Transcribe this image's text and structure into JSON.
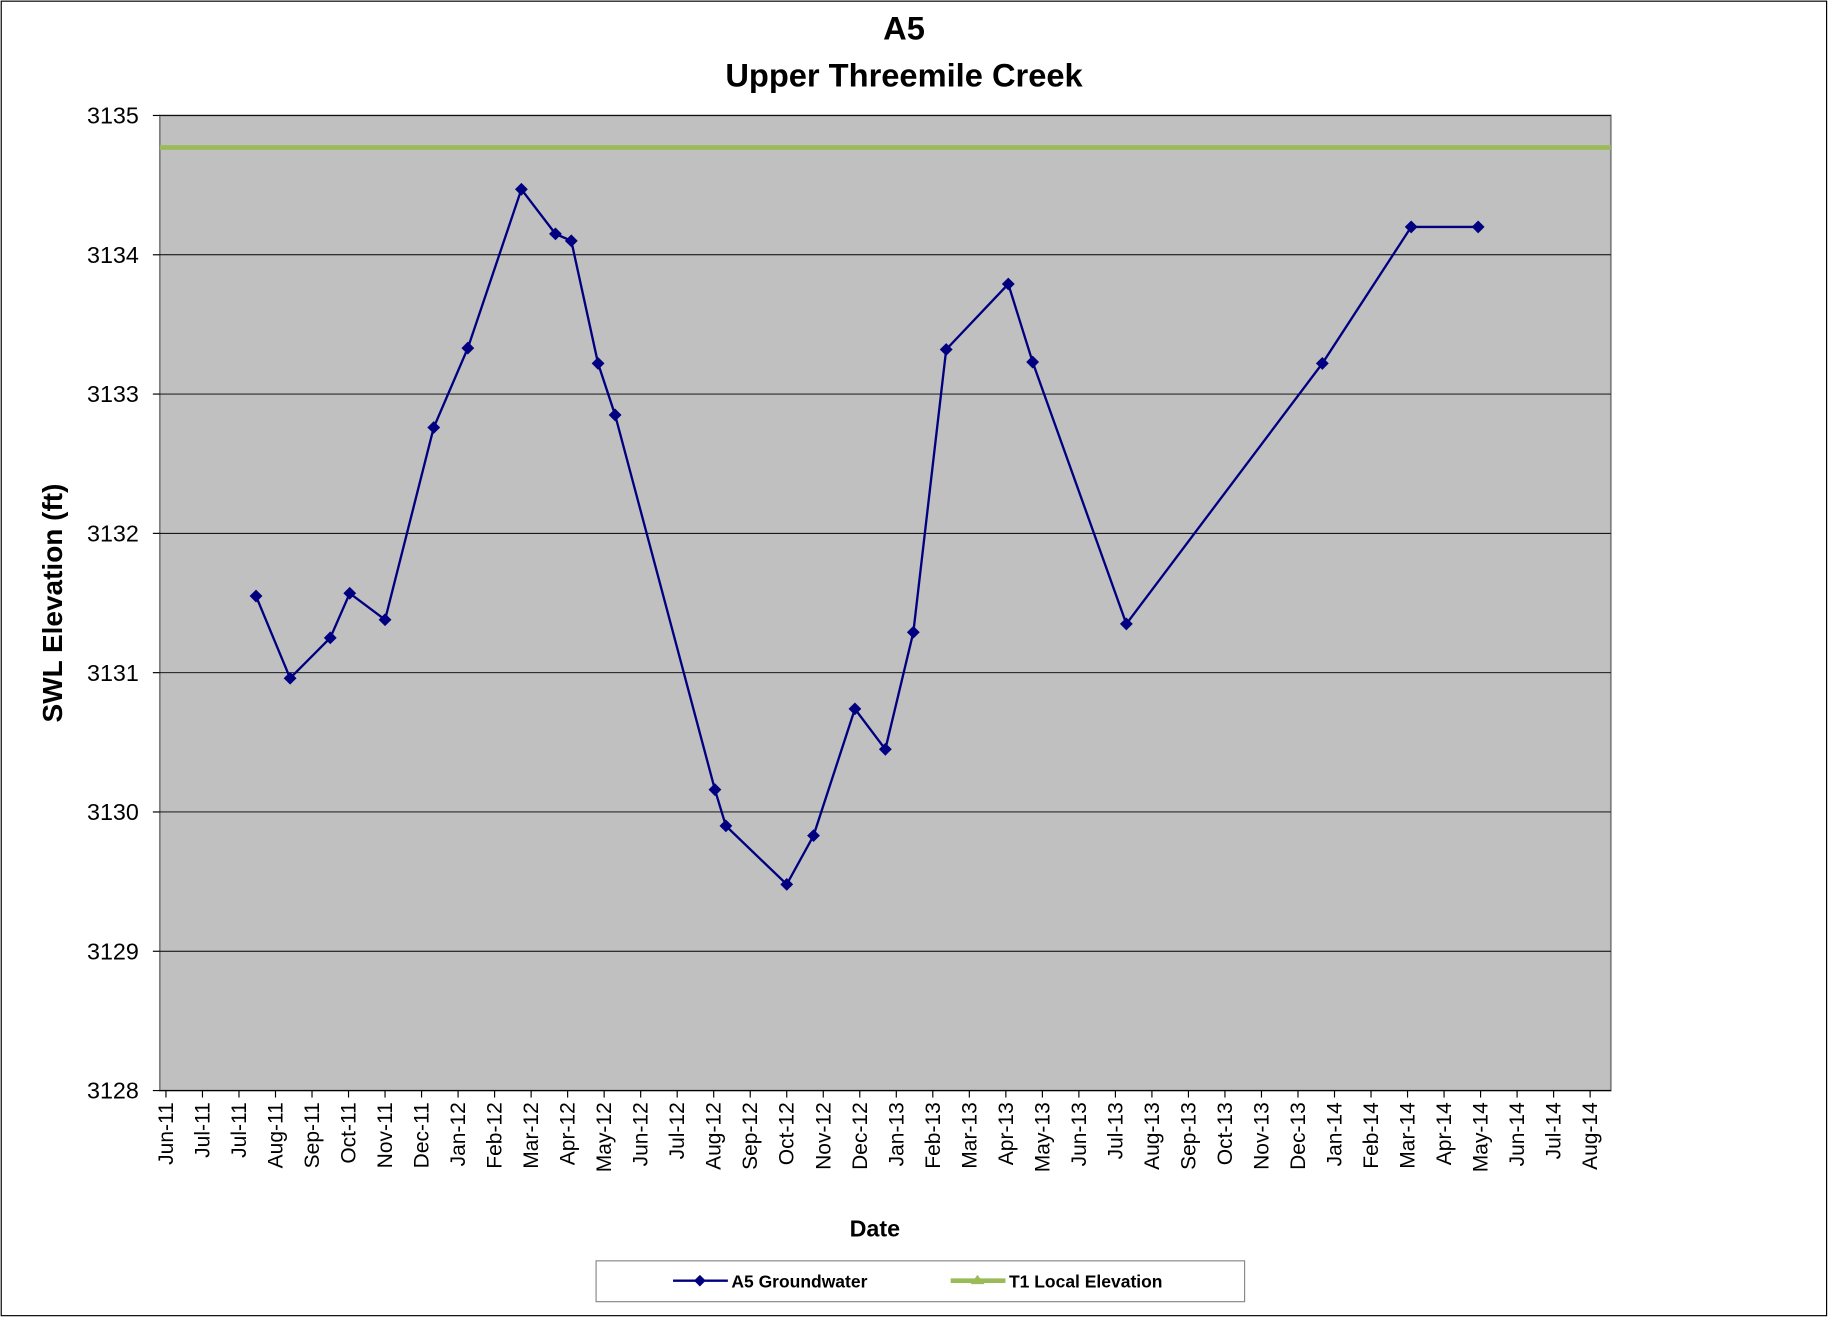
{
  "chart_data": {
    "type": "line",
    "title": "A5",
    "subtitle": "Upper Threemile Creek",
    "x_label": "Date",
    "y_label": "SWL Elevation (ft)",
    "xlim": [
      "2011-05-27",
      "2014-08-31"
    ],
    "xticks": [
      {
        "value": "2011-06-01",
        "label": "Jun-11"
      },
      {
        "value": "2011-07-01",
        "label": "Jul-11"
      },
      {
        "value": "2011-07-31",
        "label": "Jul-11"
      },
      {
        "value": "2011-08-30",
        "label": "Aug-11"
      },
      {
        "value": "2011-09-29",
        "label": "Sep-11"
      },
      {
        "value": "2011-10-29",
        "label": "Oct-11"
      },
      {
        "value": "2011-11-28",
        "label": "Nov-11"
      },
      {
        "value": "2011-12-28",
        "label": "Dec-11"
      },
      {
        "value": "2012-01-27",
        "label": "Jan-12"
      },
      {
        "value": "2012-02-26",
        "label": "Feb-12"
      },
      {
        "value": "2012-03-27",
        "label": "Mar-12"
      },
      {
        "value": "2012-04-26",
        "label": "Apr-12"
      },
      {
        "value": "2012-05-26",
        "label": "May-12"
      },
      {
        "value": "2012-06-25",
        "label": "Jun-12"
      },
      {
        "value": "2012-07-25",
        "label": "Jul-12"
      },
      {
        "value": "2012-08-24",
        "label": "Aug-12"
      },
      {
        "value": "2012-09-23",
        "label": "Sep-12"
      },
      {
        "value": "2012-10-23",
        "label": "Oct-12"
      },
      {
        "value": "2012-11-22",
        "label": "Nov-12"
      },
      {
        "value": "2012-12-22",
        "label": "Dec-12"
      },
      {
        "value": "2013-01-21",
        "label": "Jan-13"
      },
      {
        "value": "2013-02-20",
        "label": "Feb-13"
      },
      {
        "value": "2013-03-22",
        "label": "Mar-13"
      },
      {
        "value": "2013-04-21",
        "label": "Apr-13"
      },
      {
        "value": "2013-05-21",
        "label": "May-13"
      },
      {
        "value": "2013-06-20",
        "label": "Jun-13"
      },
      {
        "value": "2013-07-20",
        "label": "Jul-13"
      },
      {
        "value": "2013-08-19",
        "label": "Aug-13"
      },
      {
        "value": "2013-09-18",
        "label": "Sep-13"
      },
      {
        "value": "2013-10-18",
        "label": "Oct-13"
      },
      {
        "value": "2013-11-17",
        "label": "Nov-13"
      },
      {
        "value": "2013-12-17",
        "label": "Dec-13"
      },
      {
        "value": "2014-01-16",
        "label": "Jan-14"
      },
      {
        "value": "2014-02-15",
        "label": "Feb-14"
      },
      {
        "value": "2014-03-17",
        "label": "Mar-14"
      },
      {
        "value": "2014-04-16",
        "label": "Apr-14"
      },
      {
        "value": "2014-05-16",
        "label": "May-14"
      },
      {
        "value": "2014-06-15",
        "label": "Jun-14"
      },
      {
        "value": "2014-07-15",
        "label": "Jul-14"
      },
      {
        "value": "2014-08-14",
        "label": "Aug-14"
      }
    ],
    "ylim": [
      3128,
      3135
    ],
    "yticks": [
      3128,
      3129,
      3130,
      3131,
      3132,
      3133,
      3134,
      3135
    ],
    "grid": true,
    "series": [
      {
        "name": "A5 Groundwater",
        "color": "#000080",
        "x": [
          "2011-08-14",
          "2011-09-11",
          "2011-10-14",
          "2011-10-30",
          "2011-11-28",
          "2012-01-07",
          "2012-02-04",
          "2012-03-19",
          "2012-04-16",
          "2012-04-29",
          "2012-05-21",
          "2012-06-04",
          "2012-08-25",
          "2012-09-03",
          "2012-10-23",
          "2012-11-14",
          "2012-12-18",
          "2013-01-12",
          "2013-02-04",
          "2013-03-03",
          "2013-04-23",
          "2013-05-13",
          "2013-07-29",
          "2014-01-06",
          "2014-03-20",
          "2014-05-14"
        ],
        "values": [
          3131.55,
          3130.96,
          3131.25,
          3131.57,
          3131.38,
          3132.76,
          3133.33,
          3134.47,
          3134.15,
          3134.1,
          3133.22,
          3132.85,
          3130.16,
          3129.9,
          3129.48,
          3129.83,
          3130.74,
          3130.45,
          3131.29,
          3133.32,
          3133.79,
          3133.23,
          3131.35,
          3133.22,
          3134.2,
          3134.2
        ]
      },
      {
        "name": "T1 Local Elevation",
        "color": "#9bbb59",
        "x": [
          "2011-05-27",
          "2014-08-31"
        ],
        "values": [
          3134.77,
          3134.77
        ]
      }
    ]
  }
}
